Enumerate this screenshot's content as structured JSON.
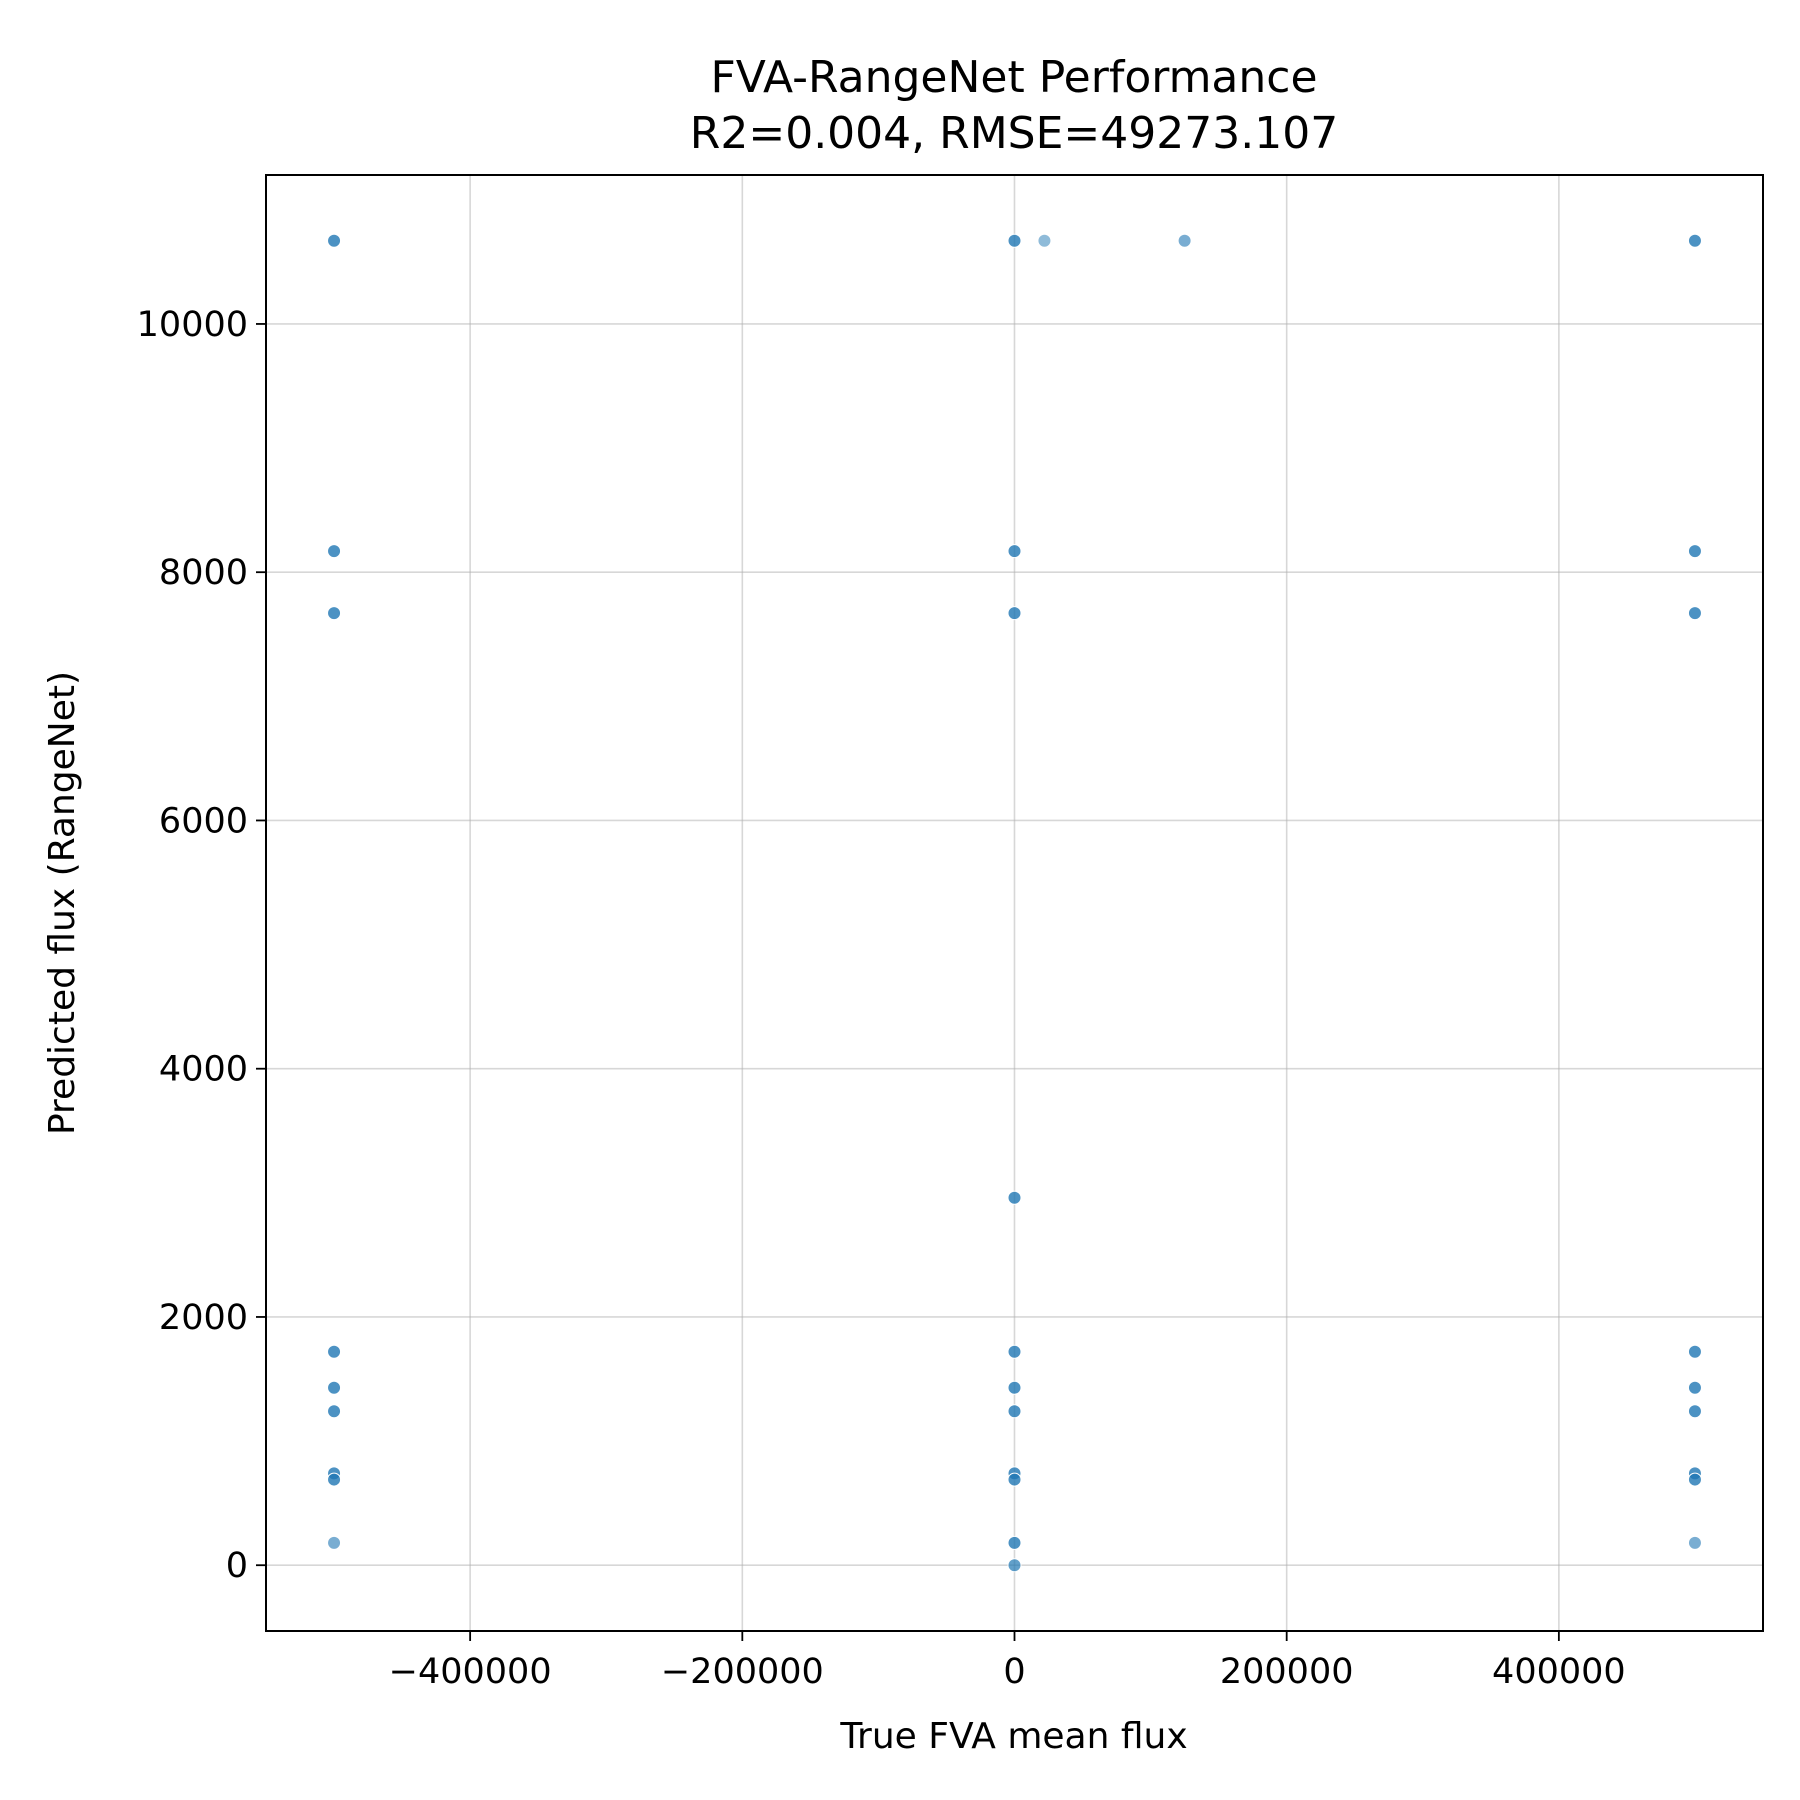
{
  "chart_data": {
    "type": "scatter",
    "title": "FVA-RangeNet Performance",
    "subtitle": "R2=0.004, RMSE=49273.107",
    "xlabel": "True FVA mean flux",
    "ylabel": "Predicted flux (RangeNet)",
    "xlim": [
      -550000,
      550000
    ],
    "ylim": [
      -530,
      11200
    ],
    "xticks": [
      -400000,
      -200000,
      0,
      200000,
      400000
    ],
    "xtick_labels": [
      "−400000",
      "−200000",
      "0",
      "200000",
      "400000"
    ],
    "yticks": [
      0,
      2000,
      4000,
      6000,
      8000,
      10000
    ],
    "ytick_labels": [
      "0",
      "2000",
      "4000",
      "6000",
      "8000",
      "10000"
    ],
    "grid": true,
    "color": "#1f77b4",
    "points": [
      {
        "x": -500000,
        "y": 10670,
        "opacity": 0.8
      },
      {
        "x": -500000,
        "y": 8170,
        "opacity": 0.8
      },
      {
        "x": -500000,
        "y": 7670,
        "opacity": 0.8
      },
      {
        "x": -500000,
        "y": 1720,
        "opacity": 0.8
      },
      {
        "x": -500000,
        "y": 1430,
        "opacity": 0.8
      },
      {
        "x": -500000,
        "y": 1240,
        "opacity": 0.8
      },
      {
        "x": -500000,
        "y": 740,
        "opacity": 0.8
      },
      {
        "x": -500000,
        "y": 690,
        "opacity": 0.8
      },
      {
        "x": -500000,
        "y": 180,
        "opacity": 0.6
      },
      {
        "x": 0,
        "y": 10670,
        "opacity": 0.8
      },
      {
        "x": 22000,
        "y": 10670,
        "opacity": 0.5
      },
      {
        "x": 125000,
        "y": 10670,
        "opacity": 0.6
      },
      {
        "x": 0,
        "y": 8170,
        "opacity": 0.8
      },
      {
        "x": 0,
        "y": 7670,
        "opacity": 0.8
      },
      {
        "x": 0,
        "y": 2960,
        "opacity": 0.8
      },
      {
        "x": 0,
        "y": 1720,
        "opacity": 0.8
      },
      {
        "x": 0,
        "y": 1430,
        "opacity": 0.8
      },
      {
        "x": 0,
        "y": 1240,
        "opacity": 0.8
      },
      {
        "x": 0,
        "y": 740,
        "opacity": 0.8
      },
      {
        "x": 0,
        "y": 690,
        "opacity": 0.8
      },
      {
        "x": 0,
        "y": 180,
        "opacity": 0.8
      },
      {
        "x": 0,
        "y": 0,
        "opacity": 0.7
      },
      {
        "x": 500000,
        "y": 10670,
        "opacity": 0.8
      },
      {
        "x": 500000,
        "y": 8170,
        "opacity": 0.8
      },
      {
        "x": 500000,
        "y": 7670,
        "opacity": 0.8
      },
      {
        "x": 500000,
        "y": 1720,
        "opacity": 0.8
      },
      {
        "x": 500000,
        "y": 1430,
        "opacity": 0.8
      },
      {
        "x": 500000,
        "y": 1240,
        "opacity": 0.8
      },
      {
        "x": 500000,
        "y": 740,
        "opacity": 0.8
      },
      {
        "x": 500000,
        "y": 690,
        "opacity": 0.8
      },
      {
        "x": 500000,
        "y": 180,
        "opacity": 0.6
      }
    ]
  }
}
